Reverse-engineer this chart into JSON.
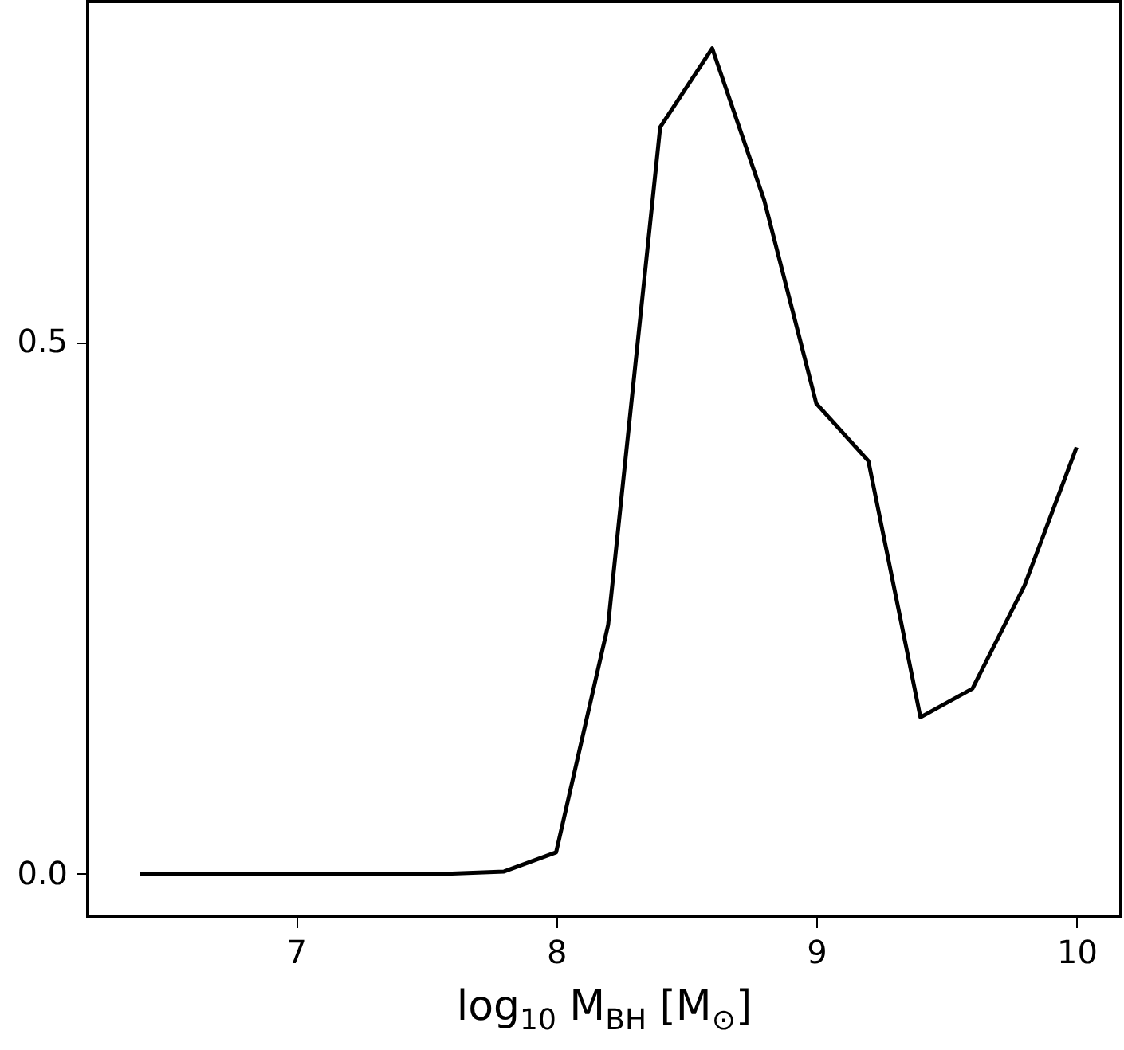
{
  "chart_data": {
    "type": "line",
    "xlabel": "log$_{10}$ M$_{BH}$ [M$_{⊙}$]",
    "x": [
      6.4,
      6.6,
      6.8,
      7.0,
      7.2,
      7.4,
      7.6,
      7.8,
      8.0,
      8.2,
      8.4,
      8.6,
      8.8,
      9.0,
      9.2,
      9.4,
      9.6,
      9.8,
      10.0
    ],
    "series": [
      {
        "color": "#000000",
        "values": [
          0,
          0,
          0,
          0,
          0,
          0,
          0,
          0.002,
          0.02,
          0.234,
          0.702,
          0.776,
          0.633,
          0.442,
          0.388,
          0.147,
          0.174,
          0.271,
          0.401
        ]
      }
    ],
    "xlim": [
      6.2,
      10.17
    ],
    "ylim": [
      -0.04,
      0.82
    ],
    "xticks": [
      7,
      8,
      9,
      10
    ],
    "yticks": [
      {
        "value": 0,
        "label": "0.0"
      },
      {
        "value": 0.5,
        "label": "0.5"
      }
    ],
    "grid": false,
    "marker": "none",
    "line_style": "solid"
  }
}
